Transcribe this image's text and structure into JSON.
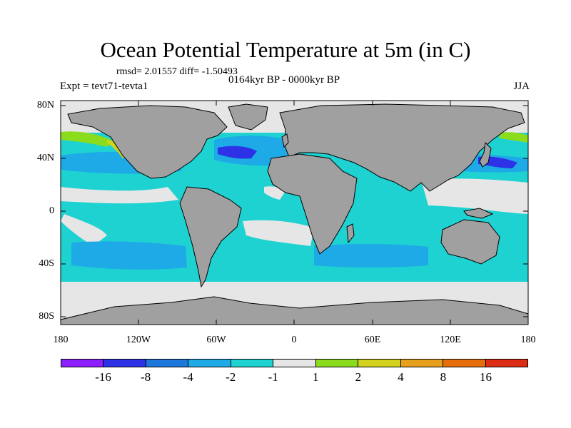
{
  "title": "Ocean Potential Temperature at 5m (in C)",
  "stats": "rmsd= 2.01557 diff= -1.50493",
  "period": "0164kyr BP - 0000kyr BP",
  "experiment": "Expt = tevt71-tevta1",
  "season": "JJA",
  "map": {
    "lat_labels": [
      "80N",
      "40N",
      "0",
      "40S",
      "80S"
    ],
    "lon_labels": [
      "180",
      "120W",
      "60W",
      "0",
      "60E",
      "120E",
      "180"
    ],
    "land_color": "#a0a0a0",
    "near_zero_color": "#e6e6e6"
  },
  "colorbar": {
    "colors": [
      "#8c1eff",
      "#2d32e6",
      "#1e78dc",
      "#1eaae6",
      "#1ed2d2",
      "#e6e6e6",
      "#8cdc1e",
      "#d2d21e",
      "#e6a01e",
      "#e66e0a",
      "#dc2d14"
    ],
    "labels": [
      "-16",
      "-8",
      "-4",
      "-2",
      "-1",
      "1",
      "2",
      "4",
      "8",
      "16"
    ]
  }
}
